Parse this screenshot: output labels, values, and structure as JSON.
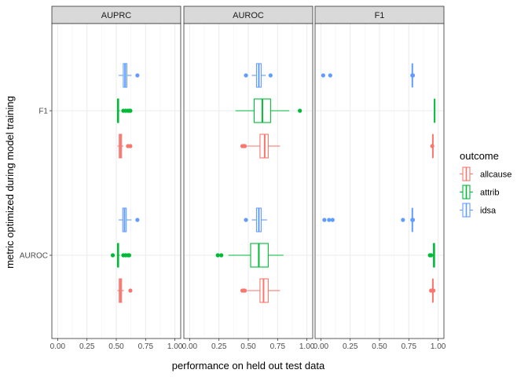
{
  "chart_data": {
    "type": "boxplot",
    "facet_var": "performance metric",
    "facets": [
      "AUPRC",
      "AUROC",
      "F1"
    ],
    "xlabel": "performance on held out test data",
    "ylabel": "metric optimized during model training",
    "xlim": [
      0,
      1
    ],
    "x_ticks": [
      "0.00",
      "0.25",
      "0.50",
      "0.75",
      "1.00"
    ],
    "y_categories": [
      "F1",
      "AUROC"
    ],
    "grid": true,
    "legend": {
      "title": "outcome",
      "position": "right",
      "entries": [
        "allcause",
        "attrib",
        "idsa"
      ]
    },
    "colors": {
      "allcause": "#F8766D",
      "attrib": "#00BA38",
      "idsa": "#619CFF"
    },
    "boxes": [
      {
        "facet": "AUPRC",
        "trained": "F1",
        "outcome": "idsa",
        "min": 0.52,
        "q1": 0.56,
        "median": 0.575,
        "q3": 0.59,
        "max": 0.63,
        "outliers": [
          0.68
        ]
      },
      {
        "facet": "AUPRC",
        "trained": "F1",
        "outcome": "attrib",
        "min": 0.505,
        "q1": 0.51,
        "median": 0.515,
        "q3": 0.52,
        "max": 0.53,
        "outliers": [
          0.56,
          0.58,
          0.6,
          0.61,
          0.62
        ]
      },
      {
        "facet": "AUPRC",
        "trained": "F1",
        "outcome": "allcause",
        "min": 0.51,
        "q1": 0.525,
        "median": 0.535,
        "q3": 0.545,
        "max": 0.56,
        "outliers": [
          0.6,
          0.62
        ]
      },
      {
        "facet": "AUPRC",
        "trained": "AUROC",
        "outcome": "idsa",
        "min": 0.52,
        "q1": 0.555,
        "median": 0.57,
        "q3": 0.585,
        "max": 0.63,
        "outliers": [
          0.68
        ]
      },
      {
        "facet": "AUPRC",
        "trained": "AUROC",
        "outcome": "attrib",
        "min": 0.505,
        "q1": 0.51,
        "median": 0.515,
        "q3": 0.52,
        "max": 0.53,
        "outliers": [
          0.47,
          0.56,
          0.58,
          0.6,
          0.61
        ]
      },
      {
        "facet": "AUPRC",
        "trained": "AUROC",
        "outcome": "allcause",
        "min": 0.51,
        "q1": 0.525,
        "median": 0.535,
        "q3": 0.545,
        "max": 0.565,
        "outliers": [
          0.62
        ]
      },
      {
        "facet": "AUROC",
        "trained": "F1",
        "outcome": "idsa",
        "min": 0.53,
        "q1": 0.57,
        "median": 0.59,
        "q3": 0.61,
        "max": 0.65,
        "outliers": [
          0.48,
          0.69
        ]
      },
      {
        "facet": "AUROC",
        "trained": "F1",
        "outcome": "attrib",
        "min": 0.39,
        "q1": 0.55,
        "median": 0.62,
        "q3": 0.69,
        "max": 0.85,
        "outliers": [
          0.94
        ]
      },
      {
        "facet": "AUROC",
        "trained": "F1",
        "outcome": "allcause",
        "min": 0.49,
        "q1": 0.6,
        "median": 0.64,
        "q3": 0.67,
        "max": 0.77,
        "outliers": [
          0.45,
          0.46,
          0.47
        ]
      },
      {
        "facet": "AUROC",
        "trained": "AUROC",
        "outcome": "idsa",
        "min": 0.53,
        "q1": 0.57,
        "median": 0.59,
        "q3": 0.61,
        "max": 0.66,
        "outliers": [
          0.48
        ]
      },
      {
        "facet": "AUROC",
        "trained": "AUROC",
        "outcome": "attrib",
        "min": 0.33,
        "q1": 0.52,
        "median": 0.59,
        "q3": 0.67,
        "max": 0.8,
        "outliers": [
          0.24,
          0.27
        ]
      },
      {
        "facet": "AUROC",
        "trained": "AUROC",
        "outcome": "allcause",
        "min": 0.49,
        "q1": 0.6,
        "median": 0.63,
        "q3": 0.67,
        "max": 0.77,
        "outliers": [
          0.45,
          0.46,
          0.47
        ]
      },
      {
        "facet": "F1",
        "trained": "F1",
        "outcome": "idsa",
        "min": 0.78,
        "q1": 0.78,
        "median": 0.78,
        "q3": 0.78,
        "max": 0.78,
        "outliers": [
          0.02,
          0.08,
          0.78,
          0.785
        ]
      },
      {
        "facet": "F1",
        "trained": "F1",
        "outcome": "attrib",
        "min": 0.97,
        "q1": 0.97,
        "median": 0.97,
        "q3": 0.97,
        "max": 0.97,
        "outliers": []
      },
      {
        "facet": "F1",
        "trained": "F1",
        "outcome": "allcause",
        "min": 0.955,
        "q1": 0.955,
        "median": 0.955,
        "q3": 0.955,
        "max": 0.955,
        "outliers": [
          0.95
        ]
      },
      {
        "facet": "F1",
        "trained": "AUROC",
        "outcome": "idsa",
        "min": 0.78,
        "q1": 0.78,
        "median": 0.78,
        "q3": 0.78,
        "max": 0.78,
        "outliers": [
          0.03,
          0.07,
          0.1,
          0.7,
          0.78,
          0.785
        ]
      },
      {
        "facet": "F1",
        "trained": "AUROC",
        "outcome": "attrib",
        "min": 0.95,
        "q1": 0.96,
        "median": 0.965,
        "q3": 0.97,
        "max": 0.97,
        "outliers": [
          0.93,
          0.94
        ]
      },
      {
        "facet": "F1",
        "trained": "AUROC",
        "outcome": "allcause",
        "min": 0.955,
        "q1": 0.955,
        "median": 0.955,
        "q3": 0.955,
        "max": 0.955,
        "outliers": [
          0.94,
          0.95,
          0.96
        ]
      }
    ]
  }
}
